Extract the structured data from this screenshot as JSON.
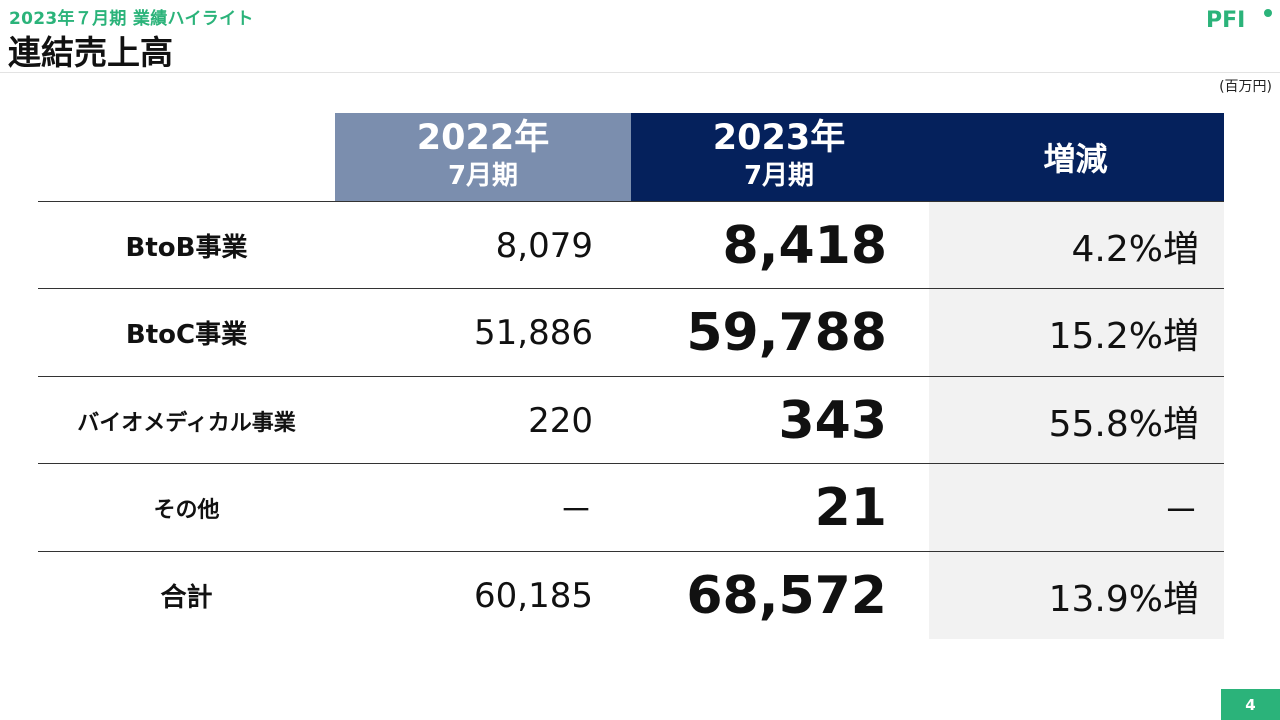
{
  "header": {
    "subtitle": "2023年７月期 業績ハイライト",
    "title": "連結売上高",
    "logo_text": "PFI"
  },
  "unit": "(百万円)",
  "table": {
    "columns": {
      "col_2022": {
        "line1": "2022年",
        "line2": "7月期"
      },
      "col_2023": {
        "line1": "2023年",
        "line2": "7月期"
      },
      "col_diff": "増減"
    },
    "rows": [
      {
        "label": "BtoB事業",
        "v2022": "8,079",
        "v2023": "8,418",
        "diff": "4.2%増"
      },
      {
        "label": "BtoC事業",
        "v2022": "51,886",
        "v2023": "59,788",
        "diff": "15.2%増"
      },
      {
        "label": "バイオメディカル事業",
        "v2022": "220",
        "v2023": "343",
        "diff": "55.8%増"
      },
      {
        "label": "その他",
        "v2022": "－",
        "v2023": "21",
        "diff": "－"
      },
      {
        "label": "合計",
        "v2022": "60,185",
        "v2023": "68,572",
        "diff": "13.9%増"
      }
    ]
  },
  "footer": {
    "page_number": "4"
  },
  "colors": {
    "accent_green": "#2bb37a",
    "header_navy": "#05215c",
    "header_gray_blue": "#7b8eae",
    "diff_column_bg": "#f2f2f2"
  }
}
